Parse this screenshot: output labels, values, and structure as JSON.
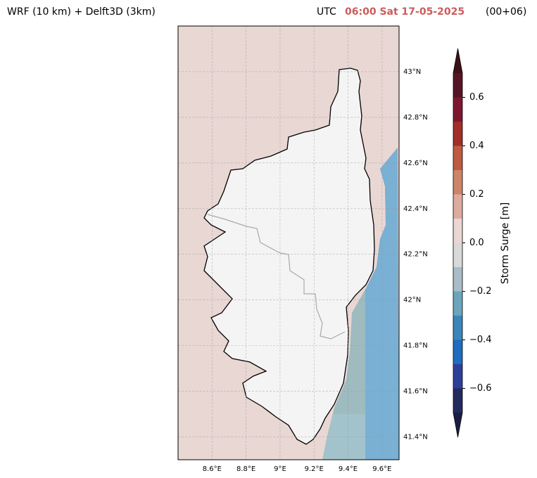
{
  "header": {
    "title": "WRF (10 km) + Delft3D (3km)",
    "zone": "UTC",
    "time": "06:00 Sat 17-05-2025",
    "lead": "(00+06)"
  },
  "chart_data": {
    "type": "map",
    "xlim": [
      8.4,
      9.7
    ],
    "ylim": [
      41.3,
      43.2
    ],
    "xticks": [
      {
        "value": 8.6,
        "label": "8.6°E"
      },
      {
        "value": 8.8,
        "label": "8.8°E"
      },
      {
        "value": 9.0,
        "label": "9°E"
      },
      {
        "value": 9.2,
        "label": "9.2°E"
      },
      {
        "value": 9.4,
        "label": "9.4°E"
      },
      {
        "value": 9.6,
        "label": "9.6°E"
      }
    ],
    "yticks": [
      {
        "value": 41.4,
        "label": "41.4°N"
      },
      {
        "value": 41.6,
        "label": "41.6°N"
      },
      {
        "value": 41.8,
        "label": "41.8°N"
      },
      {
        "value": 42.0,
        "label": "42°N"
      },
      {
        "value": 42.2,
        "label": "42.2°N"
      },
      {
        "value": 42.4,
        "label": "42.4°N"
      },
      {
        "value": 42.6,
        "label": "42.6°N"
      },
      {
        "value": 42.8,
        "label": "42.8°N"
      },
      {
        "value": 43.0,
        "label": "43°N"
      }
    ],
    "grid": true,
    "colorbar": {
      "label": "Storm Surge [m]",
      "levels": [
        -0.7,
        -0.6,
        -0.5,
        -0.4,
        -0.3,
        -0.2,
        -0.1,
        0.0,
        0.1,
        0.2,
        0.3,
        0.4,
        0.5,
        0.6,
        0.7
      ],
      "colors": [
        "#232a5c",
        "#2e3f9a",
        "#1f6cc0",
        "#3a86b8",
        "#6ba4bd",
        "#a9bcc7",
        "#d9d9da",
        "#ead6d2",
        "#ddab9e",
        "#cd8468",
        "#bd5a3f",
        "#a22d2a",
        "#7f1630",
        "#561527"
      ],
      "under_color": "#1c1e40",
      "over_color": "#3d1216",
      "ticks": [
        {
          "value": -0.6,
          "label": "−0.6"
        },
        {
          "value": -0.4,
          "label": "−0.4"
        },
        {
          "value": -0.2,
          "label": "−0.2"
        },
        {
          "value": 0.0,
          "label": "0.0"
        },
        0.2,
        0.4,
        0.6
      ]
    }
  }
}
